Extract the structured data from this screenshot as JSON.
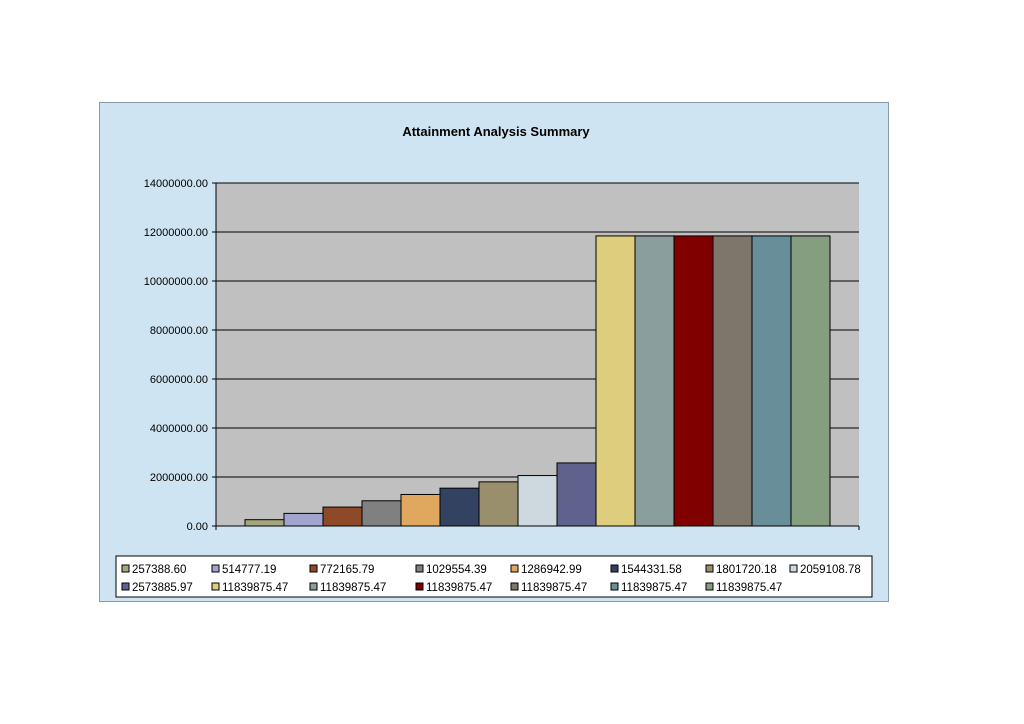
{
  "chart_data": {
    "type": "bar",
    "title": "Attainment Analysis Summary",
    "xlabel": "",
    "ylabel": "",
    "ylim": [
      0,
      14000000
    ],
    "yticks": [
      0,
      2000000,
      4000000,
      6000000,
      8000000,
      10000000,
      12000000,
      14000000
    ],
    "ytick_labels": [
      "0.00",
      "2000000.00",
      "4000000.00",
      "6000000.00",
      "8000000.00",
      "10000000.00",
      "12000000.00",
      "14000000.00"
    ],
    "grid": true,
    "legend_position": "bottom",
    "series": [
      {
        "name": "257388.60",
        "value": 257388.6,
        "color": "#a4a77e"
      },
      {
        "name": "514777.19",
        "value": 514777.19,
        "color": "#a3a3d0"
      },
      {
        "name": "772165.79",
        "value": 772165.79,
        "color": "#8e4a28"
      },
      {
        "name": "1029554.39",
        "value": 1029554.39,
        "color": "#808080"
      },
      {
        "name": "1286942.99",
        "value": 1286942.99,
        "color": "#e0a85e"
      },
      {
        "name": "1544331.58",
        "value": 1544331.58,
        "color": "#344262"
      },
      {
        "name": "1801720.18",
        "value": 1801720.18,
        "color": "#9a8f6c"
      },
      {
        "name": "2059108.78",
        "value": 2059108.78,
        "color": "#cdd9de"
      },
      {
        "name": "2573885.97",
        "value": 2573885.97,
        "color": "#60628e"
      },
      {
        "name": "11839875.47",
        "value": 11839875.47,
        "color": "#decd7c"
      },
      {
        "name": "11839875.47",
        "value": 11839875.47,
        "color": "#8b9e9e"
      },
      {
        "name": "11839875.47",
        "value": 11839875.47,
        "color": "#800000"
      },
      {
        "name": "11839875.47",
        "value": 11839875.47,
        "color": "#7d766b"
      },
      {
        "name": "11839875.47",
        "value": 11839875.47,
        "color": "#678e99"
      },
      {
        "name": "11839875.47",
        "value": 11839875.47,
        "color": "#869e80"
      }
    ]
  }
}
